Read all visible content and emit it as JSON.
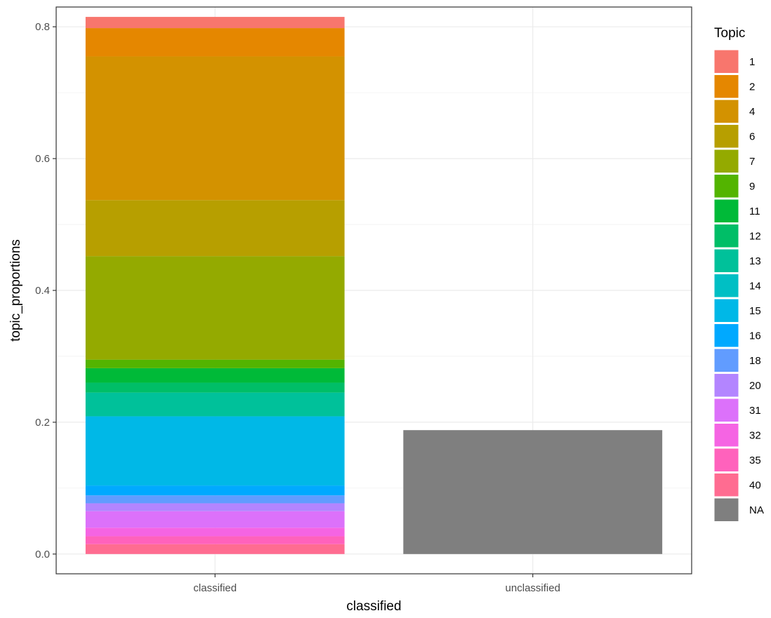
{
  "chart_data": {
    "type": "bar",
    "stacked": true,
    "categories": [
      "classified",
      "unclassified"
    ],
    "xlabel": "classified",
    "ylabel": "topic_proportions",
    "ylim": [
      -0.03,
      0.83
    ],
    "yticks": [
      0.0,
      0.2,
      0.4,
      0.6,
      0.8
    ],
    "ytick_labels": [
      "0.0",
      "0.2",
      "0.4",
      "0.6",
      "0.8"
    ],
    "grid": true,
    "legend": {
      "title": "Topic",
      "position": "right"
    },
    "series": [
      {
        "name": "40",
        "color": "#FF6C91",
        "values": [
          0.015,
          0
        ]
      },
      {
        "name": "35",
        "color": "#FF62BC",
        "values": [
          0.012,
          0
        ]
      },
      {
        "name": "32",
        "color": "#F564E3",
        "values": [
          0.013,
          0
        ]
      },
      {
        "name": "31",
        "color": "#DC71FA",
        "values": [
          0.025,
          0
        ]
      },
      {
        "name": "20",
        "color": "#B385FF",
        "values": [
          0.012,
          0
        ]
      },
      {
        "name": "18",
        "color": "#619CFF",
        "values": [
          0.012,
          0
        ]
      },
      {
        "name": "16",
        "color": "#00A9FF",
        "values": [
          0.015,
          0
        ]
      },
      {
        "name": "15",
        "color": "#00B8E7",
        "values": [
          0.105,
          0
        ]
      },
      {
        "name": "14",
        "color": "#00BFC4",
        "values": [
          0.0,
          0
        ]
      },
      {
        "name": "13",
        "color": "#00C19A",
        "values": [
          0.036,
          0
        ]
      },
      {
        "name": "12",
        "color": "#00BE67",
        "values": [
          0.015,
          0
        ]
      },
      {
        "name": "11",
        "color": "#00BA38",
        "values": [
          0.022,
          0
        ]
      },
      {
        "name": "9",
        "color": "#53B400",
        "values": [
          0.013,
          0
        ]
      },
      {
        "name": "7",
        "color": "#94AA00",
        "values": [
          0.157,
          0
        ]
      },
      {
        "name": "6",
        "color": "#B79F00",
        "values": [
          0.085,
          0
        ]
      },
      {
        "name": "4",
        "color": "#D39200",
        "values": [
          0.218,
          0
        ]
      },
      {
        "name": "2",
        "color": "#E58700",
        "values": [
          0.043,
          0
        ]
      },
      {
        "name": "1",
        "color": "#F8766D",
        "values": [
          0.017,
          0
        ]
      },
      {
        "name": "NA",
        "color": "#7F7F7F",
        "values": [
          0,
          0.188
        ]
      }
    ],
    "legend_order": [
      "1",
      "2",
      "4",
      "6",
      "7",
      "9",
      "11",
      "12",
      "13",
      "14",
      "15",
      "16",
      "18",
      "20",
      "31",
      "32",
      "35",
      "40",
      "NA"
    ]
  }
}
